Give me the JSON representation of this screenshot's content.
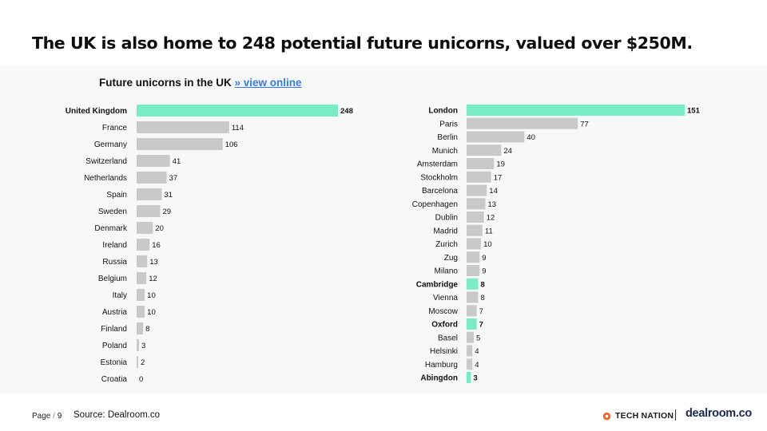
{
  "headline": "The UK is also home to 248 potential future unicorns, valued over $250M.",
  "chart_title": {
    "text": "Future unicorns in the UK",
    "link": "» view online"
  },
  "footer": {
    "page_label": "Page",
    "page_number": "9",
    "source": "Source: Dealroom.co"
  },
  "logos": {
    "tech_nation": "TECH NATION",
    "dealroom": "dealroom.co"
  },
  "colors": {
    "highlight": "#79ecc4",
    "bar": "#c8c9c9",
    "panel": "#f7f8fa",
    "link": "#3b7be0",
    "tech_nation_orange": "#f0642d"
  },
  "chart_data": [
    {
      "type": "bar",
      "orientation": "horizontal",
      "categories": [
        "United Kingdom",
        "France",
        "Germany",
        "Switzerland",
        "Netherlands",
        "Spain",
        "Sweden",
        "Denmark",
        "Ireland",
        "Russia",
        "Belgium",
        "Italy",
        "Austria",
        "Finland",
        "Poland",
        "Estonia",
        "Croatia"
      ],
      "values": [
        248,
        114,
        106,
        41,
        37,
        31,
        29,
        20,
        16,
        13,
        12,
        10,
        10,
        8,
        3,
        2,
        0
      ],
      "highlighted": [
        "United Kingdom"
      ],
      "xlim": [
        0,
        248
      ]
    },
    {
      "type": "bar",
      "orientation": "horizontal",
      "categories": [
        "London",
        "Paris",
        "Berlin",
        "Munich",
        "Amsterdam",
        "Stockholm",
        "Barcelona",
        "Copenhagen",
        "Dublin",
        "Madrid",
        "Zurich",
        "Zug",
        "Milano",
        "Cambridge",
        "Vienna",
        "Moscow",
        "Oxford",
        "Basel",
        "Helsinki",
        "Hamburg",
        "Abingdon"
      ],
      "values": [
        151,
        77,
        40,
        24,
        19,
        17,
        14,
        13,
        12,
        11,
        10,
        9,
        9,
        8,
        8,
        7,
        7,
        5,
        4,
        4,
        3
      ],
      "highlighted": [
        "London",
        "Cambridge",
        "Oxford",
        "Abingdon"
      ],
      "xlim": [
        0,
        151
      ]
    }
  ]
}
